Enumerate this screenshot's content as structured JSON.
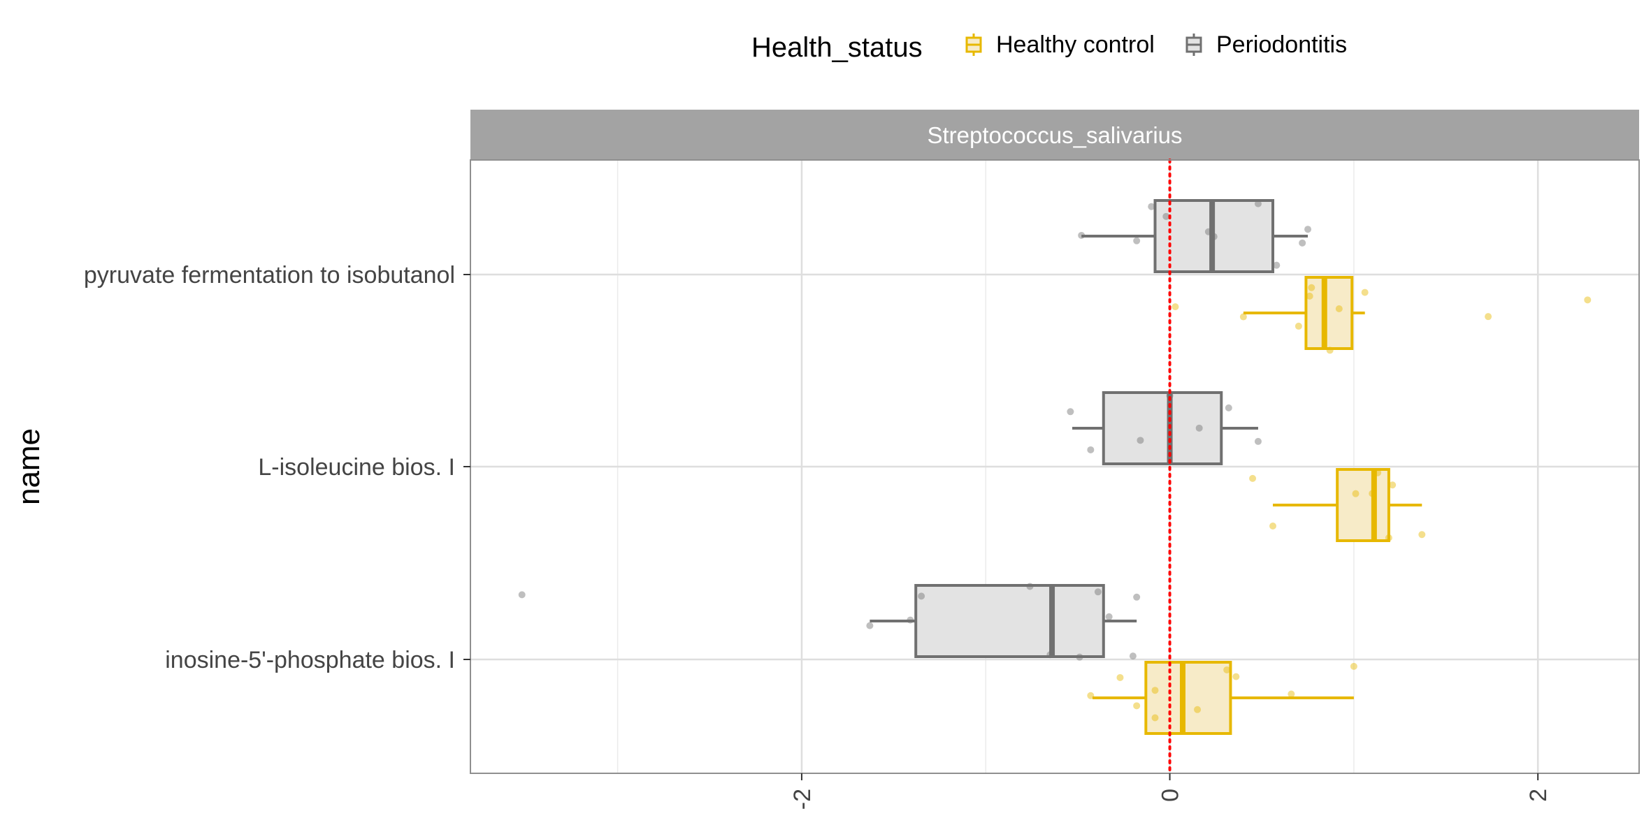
{
  "chart_data": {
    "type": "boxplot",
    "orientation": "horizontal",
    "facet_title": "Streptococcus_salivarius",
    "ylabel": "name",
    "xlabel": "",
    "xlim": [
      -3.8,
      2.55
    ],
    "x_ticks": [
      -2,
      0,
      2
    ],
    "x_tick_labels": [
      "-2",
      "0",
      "2"
    ],
    "x_minor_gridlines": [
      -3,
      -1,
      1
    ],
    "reference_line": {
      "x": 0,
      "color": "#ff0000",
      "style": "dotted"
    },
    "grid": true,
    "legend": {
      "title": "Health_status",
      "position": "top",
      "entries": [
        {
          "name": "Healthy control",
          "color": "#e7b800",
          "fill": "#f7ebc8"
        },
        {
          "name": "Periodontitis",
          "color": "#707070",
          "fill": "#e3e3e3"
        }
      ]
    },
    "categories": [
      "pyruvate fermentation to isobutanol",
      "L-isoleucine bios. I",
      "inosine-5'-phosphate bios. I"
    ],
    "series": [
      {
        "name": "Periodontitis",
        "color": "#707070",
        "fill": "#e3e3e3",
        "boxes": [
          {
            "category": "pyruvate fermentation to isobutanol",
            "whisker_low": -0.48,
            "q1": -0.08,
            "median": 0.23,
            "q3": 0.56,
            "whisker_high": 0.75,
            "points": [
              -0.48,
              -0.18,
              -0.1,
              -0.02,
              0.21,
              0.24,
              0.48,
              0.58,
              0.72,
              0.75
            ]
          },
          {
            "category": "L-isoleucine bios. I",
            "whisker_low": -0.53,
            "q1": -0.36,
            "median": 0.0,
            "q3": 0.28,
            "whisker_high": 0.48,
            "points": [
              -0.54,
              -0.43,
              -0.16,
              0.0,
              0.16,
              0.32,
              0.48
            ]
          },
          {
            "category": "inosine-5'-phosphate bios. I",
            "whisker_low": -1.63,
            "q1": -1.38,
            "median": -0.64,
            "q3": -0.36,
            "whisker_high": -0.18,
            "points": [
              -3.52,
              -1.63,
              -1.41,
              -1.35,
              -0.76,
              -0.65,
              -0.49,
              -0.39,
              -0.33,
              -0.2,
              -0.18
            ]
          }
        ]
      },
      {
        "name": "Healthy control",
        "color": "#e7b800",
        "fill": "#f7ebc8",
        "boxes": [
          {
            "category": "pyruvate fermentation to isobutanol",
            "whisker_low": 0.4,
            "q1": 0.74,
            "median": 0.84,
            "q3": 0.99,
            "whisker_high": 1.06,
            "points": [
              0.03,
              0.4,
              0.7,
              0.76,
              0.77,
              0.87,
              0.92,
              1.06,
              1.73,
              2.27
            ]
          },
          {
            "category": "L-isoleucine bios. I",
            "whisker_low": 0.56,
            "q1": 0.91,
            "median": 1.11,
            "q3": 1.19,
            "whisker_high": 1.37,
            "points": [
              0.45,
              0.56,
              1.01,
              1.1,
              1.13,
              1.19,
              1.21,
              1.37
            ]
          },
          {
            "category": "inosine-5'-phosphate bios. I",
            "whisker_low": -0.42,
            "q1": -0.13,
            "median": 0.07,
            "q3": 0.33,
            "whisker_high": 1.0,
            "points": [
              -0.43,
              -0.27,
              -0.18,
              -0.08,
              -0.08,
              0.15,
              0.31,
              0.36,
              0.66,
              1.0
            ]
          }
        ]
      }
    ]
  }
}
